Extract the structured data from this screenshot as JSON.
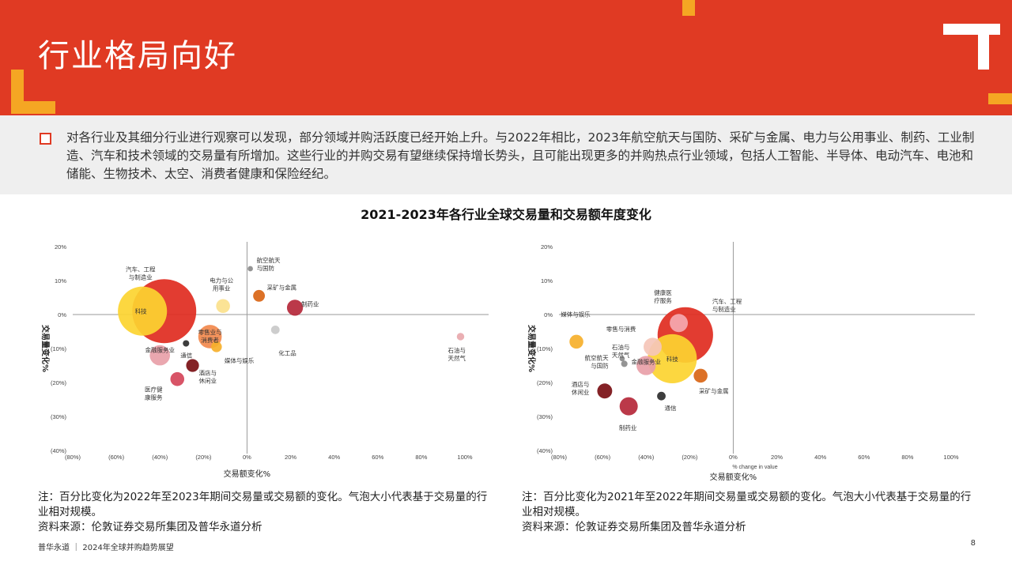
{
  "header": {
    "title": "行业格局向好"
  },
  "intro": {
    "text": "对各行业及其细分行业进行观察可以发现，部分领域并购活跃度已经开始上升。与2022年相比，2023年航空航天与国防、采矿与金属、电力与公用事业、制药、工业制造、汽车和技术领域的交易量有所增加。这些行业的并购交易有望继续保持增长势头，且可能出现更多的并购热点行业领域，包括人工智能、半导体、电动汽车、电池和储能、生物技术、太空、消费者健康和保险经纪。"
  },
  "section": {
    "chart_title": "2021-2023年各行业全球交易量和交易额年度变化"
  },
  "colors": {
    "brand_red": "#e03a23",
    "orange": "#f5a623",
    "gray": "#efefef"
  },
  "chart_data": [
    {
      "type": "scatter",
      "period": "2022-2023",
      "xlabel": "交易额变化%",
      "ylabel": "交易量变化%",
      "xlim": [
        -80,
        100
      ],
      "ylim": [
        -40,
        20
      ],
      "xticks": [
        "(80%)",
        "(60%)",
        "(40%)",
        "(20%)",
        "0%",
        "20%",
        "40%",
        "60%",
        "80%",
        "100%"
      ],
      "yticks": [
        "20%",
        "10%",
        "0%",
        "(10%)",
        "(20%)",
        "(30%)",
        "(40%)"
      ],
      "points": [
        {
          "label": "汽车、工程与制造业",
          "x": -38,
          "y": 1,
          "size": 30,
          "color": "#e02b1f"
        },
        {
          "label": "科技",
          "x": -48,
          "y": 1,
          "size": 23,
          "color": "#fcd430"
        },
        {
          "label": "电力与公用事业",
          "x": -11,
          "y": 2.5,
          "size": 6.5,
          "color": "#fbe18c"
        },
        {
          "label": "航空航天与国防",
          "x": 1.5,
          "y": 13.5,
          "size": 2.5,
          "color": "#8b8b8b"
        },
        {
          "label": "采矿与金属",
          "x": 5.5,
          "y": 5.5,
          "size": 5.5,
          "color": "#d96515"
        },
        {
          "label": "制药业",
          "x": 22,
          "y": 2,
          "size": 7.5,
          "color": "#b5283a"
        },
        {
          "label": "化工品",
          "x": 13,
          "y": -4.5,
          "size": 4,
          "color": "#c9c9c9"
        },
        {
          "label": "石油与天然气",
          "x": 98,
          "y": -6.5,
          "size": 3.5,
          "color": "#e8a8ad"
        },
        {
          "label": "零售业与消费者",
          "x": -17,
          "y": -6.5,
          "size": 11,
          "color": "#f2894d"
        },
        {
          "label": "媒体与娱乐",
          "x": -14,
          "y": -9.5,
          "size": 5,
          "color": "#f6b02b"
        },
        {
          "label": "通信",
          "x": -28,
          "y": -8.5,
          "size": 3,
          "color": "#2c2c2c"
        },
        {
          "label": "金融服务业",
          "x": -40,
          "y": -12,
          "size": 9.5,
          "color": "#e8a0a8"
        },
        {
          "label": "酒店与休闲业",
          "x": -25,
          "y": -15,
          "size": 6,
          "color": "#7a0f13"
        },
        {
          "label": "医疗健康服务",
          "x": -32,
          "y": -19,
          "size": 6.5,
          "color": "#d5455a"
        }
      ]
    },
    {
      "type": "scatter",
      "period": "2021-2022",
      "xlabel": "交易额变化%",
      "xlabel_en": "% change in value",
      "ylabel": "交易量变化%",
      "xlim": [
        -80,
        100
      ],
      "ylim": [
        -40,
        20
      ],
      "xticks": [
        "(80%)",
        "(60%)",
        "(40%)",
        "(20%)",
        "0%",
        "20%",
        "40%",
        "60%",
        "80%",
        "100%"
      ],
      "yticks": [
        "20%",
        "10%",
        "0%",
        "(10%)",
        "(20%)",
        "(30%)",
        "(40%)"
      ],
      "points": [
        {
          "label": "汽车、工程与制造业",
          "x": -22,
          "y": -6,
          "size": 26,
          "color": "#e02b1f"
        },
        {
          "label": "健康医疗服务",
          "x": -25,
          "y": -2.5,
          "size": 8.5,
          "color": "#f5a9b0"
        },
        {
          "label": "零售与消费",
          "x": -37,
          "y": -9.5,
          "size": 8.5,
          "color": "#f5c6b8"
        },
        {
          "label": "科技",
          "x": -28,
          "y": -13,
          "size": 23,
          "color": "#fcd430"
        },
        {
          "label": "金融服务业",
          "x": -40,
          "y": -15,
          "size": 9,
          "color": "#e8a0a8"
        },
        {
          "label": "媒体与娱乐",
          "x": -72,
          "y": -8,
          "size": 6.5,
          "color": "#f6b02b"
        },
        {
          "label": "石油与天然气",
          "x": -51,
          "y": -13,
          "size": 2.5,
          "color": "#8b8b8b"
        },
        {
          "label": "航空航天与国防",
          "x": -50,
          "y": -14.5,
          "size": 3,
          "color": "#8b8b8b"
        },
        {
          "label": "采矿与金属",
          "x": -15,
          "y": -18,
          "size": 6.5,
          "color": "#d96515"
        },
        {
          "label": "酒店与休闲业",
          "x": -59,
          "y": -22.5,
          "size": 7,
          "color": "#7a0f13"
        },
        {
          "label": "通信",
          "x": -33,
          "y": -24,
          "size": 4,
          "color": "#2c2c2c"
        },
        {
          "label": "制药业",
          "x": -48,
          "y": -27,
          "size": 8.5,
          "color": "#b5283a"
        }
      ]
    }
  ],
  "notes": {
    "left": "注：百分比变化为2022年至2023年期间交易量或交易额的变化。气泡大小代表基于交易量的行业相对规模。",
    "right": "注：百分比变化为2021年至2022年期间交易量或交易额的变化。气泡大小代表基于交易量的行业相对规模。",
    "source": "资料来源：伦敦证券交易所集团及普华永道分析"
  },
  "footer": {
    "text": "普华永道 ｜ 2024年全球并购趋势展望",
    "page": "8"
  }
}
